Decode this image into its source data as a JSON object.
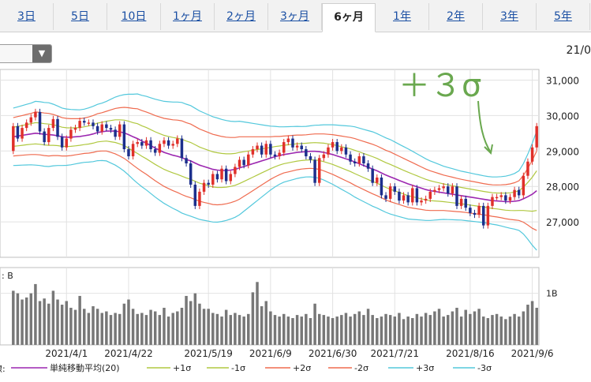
{
  "tabs": [
    {
      "label": "3日",
      "active": false
    },
    {
      "label": "5日",
      "active": false
    },
    {
      "label": "10日",
      "active": false
    },
    {
      "label": "1ヶ月",
      "active": false
    },
    {
      "label": "2ヶ月",
      "active": false
    },
    {
      "label": "3ヶ月",
      "active": false
    },
    {
      "label": "6ヶ月",
      "active": true
    },
    {
      "label": "1年",
      "active": false
    },
    {
      "label": "2年",
      "active": false
    },
    {
      "label": "3年",
      "active": false
    },
    {
      "label": "5年",
      "active": false
    }
  ],
  "header": {
    "date_label": "21/0"
  },
  "colors": {
    "up": "#e0302a",
    "down": "#1c2f8c",
    "sma": "#9c27b0",
    "band1": "#b0c840",
    "band2": "#ef6b4f",
    "band3": "#53c8dc",
    "volume": "#777777",
    "annotation": "#6aa84f"
  },
  "chart_data": {
    "type": "candlestick",
    "price_ticks": [
      "31,000",
      "30,000",
      "29,000",
      "28,000",
      "27,000"
    ],
    "price_tick_values": [
      31000,
      30000,
      29000,
      28000,
      27000
    ],
    "price_range": [
      26000,
      31300
    ],
    "volume_label_left": ": B",
    "volume_tick_label": "1B",
    "volume_tick_value": 1.0,
    "volume_range": [
      0,
      1.5
    ],
    "x_labels": [
      "2021/4/1",
      "2021/4/22",
      "2021/5/19",
      "2021/6/9",
      "2021/6/30",
      "2021/7/21",
      "2021/8/16",
      "2021/9/6"
    ],
    "x_label_indices": [
      12,
      26,
      44,
      58,
      72,
      86,
      103,
      117
    ],
    "annotation": "＋３σ",
    "legend": [
      {
        "label": "単純移動平均(20)",
        "key": "sma"
      },
      {
        "label": "+1σ",
        "key": "band1"
      },
      {
        "label": "-1σ",
        "key": "band1"
      },
      {
        "label": "+2σ",
        "key": "band2"
      },
      {
        "label": "-2σ",
        "key": "band2"
      },
      {
        "label": "+3σ",
        "key": "band3"
      },
      {
        "label": "-3σ",
        "key": "band3"
      }
    ],
    "legend_prefix": "線:",
    "close": [
      29700,
      29350,
      29650,
      29800,
      29950,
      30100,
      29550,
      29250,
      29650,
      29900,
      29400,
      29100,
      29350,
      29600,
      29650,
      29850,
      29800,
      29800,
      29700,
      29550,
      29750,
      29650,
      29600,
      29400,
      29750,
      29050,
      28850,
      29200,
      29250,
      29150,
      29300,
      29050,
      28950,
      29200,
      29300,
      29150,
      29200,
      29350,
      28800,
      28650,
      28050,
      27450,
      27850,
      28100,
      28050,
      28350,
      28200,
      28500,
      28150,
      28350,
      28550,
      28750,
      28600,
      28900,
      29050,
      29150,
      28900,
      29200,
      28900,
      28850,
      28950,
      29250,
      29350,
      29100,
      29150,
      29050,
      28850,
      28750,
      28100,
      28800,
      28900,
      29100,
      29250,
      29000,
      29100,
      28900,
      28700,
      28650,
      28850,
      28650,
      28500,
      28100,
      28250,
      27750,
      27650,
      28000,
      27850,
      27600,
      27750,
      27550,
      27950,
      27550,
      27600,
      27650,
      27850,
      27900,
      27950,
      28000,
      27800,
      28000,
      27450,
      27650,
      27400,
      27250,
      27200,
      27450,
      26900,
      27450,
      27700,
      27700,
      27750,
      27600,
      27700,
      27900,
      27750,
      28300,
      28700,
      29100,
      29700
    ],
    "open": [
      29000,
      29700,
      29350,
      29650,
      29800,
      29950,
      30100,
      29550,
      29250,
      29650,
      29900,
      29400,
      29100,
      29350,
      29600,
      29650,
      29850,
      29800,
      29800,
      29700,
      29550,
      29750,
      29650,
      29600,
      29400,
      29750,
      29050,
      28850,
      29200,
      29250,
      29150,
      29300,
      29050,
      28950,
      29200,
      29300,
      29150,
      29200,
      29350,
      28800,
      28650,
      28050,
      27450,
      27850,
      28100,
      28050,
      28350,
      28200,
      28500,
      28150,
      28350,
      28550,
      28750,
      28600,
      28900,
      29050,
      29150,
      28900,
      29200,
      28900,
      28850,
      28950,
      29250,
      29350,
      29100,
      29150,
      29050,
      28850,
      28750,
      28100,
      28800,
      28900,
      29100,
      29250,
      29000,
      29100,
      28900,
      28700,
      28650,
      28850,
      28650,
      28500,
      28100,
      28250,
      27750,
      27650,
      28000,
      27850,
      27600,
      27750,
      27550,
      27950,
      27550,
      27600,
      27650,
      27850,
      27900,
      27950,
      28000,
      27800,
      28000,
      27450,
      27650,
      27400,
      27250,
      27200,
      27450,
      26900,
      27450,
      27700,
      27700,
      27750,
      27600,
      27700,
      27900,
      27750,
      28300,
      28700,
      29100
    ],
    "volume": [
      1.05,
      1.0,
      0.88,
      0.92,
      1.0,
      1.18,
      0.85,
      0.9,
      0.8,
      1.05,
      0.88,
      0.78,
      0.85,
      0.72,
      0.68,
      0.95,
      0.7,
      0.62,
      0.75,
      0.7,
      0.62,
      0.65,
      0.58,
      0.62,
      0.6,
      0.8,
      0.88,
      0.7,
      0.6,
      0.62,
      0.58,
      0.68,
      0.65,
      0.58,
      0.72,
      0.55,
      0.62,
      0.65,
      0.72,
      0.95,
      0.85,
      1.0,
      0.8,
      0.7,
      0.7,
      0.62,
      0.6,
      0.55,
      0.68,
      0.58,
      0.62,
      0.58,
      0.55,
      0.6,
      1.02,
      1.22,
      0.75,
      0.85,
      0.65,
      0.58,
      0.55,
      0.6,
      0.55,
      0.52,
      0.58,
      0.55,
      0.6,
      0.52,
      0.8,
      0.6,
      0.58,
      0.55,
      0.52,
      0.55,
      0.58,
      0.62,
      0.55,
      0.6,
      0.65,
      0.58,
      0.7,
      0.58,
      0.52,
      0.55,
      0.6,
      0.58,
      0.55,
      0.62,
      0.5,
      0.55,
      0.52,
      0.6,
      0.55,
      0.62,
      0.58,
      0.65,
      0.7,
      0.55,
      0.58,
      0.65,
      0.72,
      0.55,
      0.68,
      0.6,
      0.65,
      0.7,
      0.55,
      0.52,
      0.58,
      0.6,
      0.55,
      0.5,
      0.55,
      0.6,
      0.55,
      0.65,
      0.78,
      0.85,
      0.72
    ],
    "sma": [
      29400,
      29420,
      29440,
      29460,
      29480,
      29500,
      29490,
      29470,
      29460,
      29450,
      29430,
      29400,
      29390,
      29390,
      29400,
      29410,
      29430,
      29450,
      29480,
      29520,
      29540,
      29560,
      29560,
      29560,
      29540,
      29510,
      29460,
      29400,
      29350,
      29280,
      29220,
      29150,
      29080,
      29020,
      28960,
      28920,
      28880,
      28850,
      28810,
      28760,
      28720,
      28660,
      28600,
      28560,
      28520,
      28480,
      28460,
      28450,
      28450,
      28460,
      28480,
      28520,
      28560,
      28600,
      28640,
      28680,
      28720,
      28760,
      28800,
      28840,
      28870,
      28900,
      28920,
      28940,
      28960,
      28970,
      28980,
      28990,
      28990,
      28980,
      28960,
      28930,
      28900,
      28860,
      28820,
      28780,
      28740,
      28690,
      28640,
      28590,
      28540,
      28490,
      28440,
      28380,
      28320,
      28270,
      28220,
      28170,
      28120,
      28070,
      28030,
      27990,
      27950,
      27910,
      27880,
      27860,
      27840,
      27820,
      27800,
      27780,
      27760,
      27740,
      27720,
      27700,
      27680,
      27660,
      27640,
      27620,
      27600,
      27590,
      27580,
      27570,
      27570,
      27580,
      27600,
      27650,
      27710,
      27780,
      27880
    ],
    "sigma": [
      270,
      275,
      280,
      285,
      290,
      300,
      300,
      300,
      300,
      290,
      280,
      270,
      265,
      260,
      255,
      250,
      250,
      255,
      260,
      265,
      270,
      280,
      300,
      320,
      340,
      360,
      380,
      400,
      420,
      430,
      440,
      450,
      460,
      470,
      480,
      490,
      500,
      510,
      520,
      520,
      520,
      515,
      510,
      505,
      500,
      495,
      490,
      480,
      470,
      460,
      450,
      440,
      420,
      400,
      380,
      360,
      340,
      320,
      300,
      285,
      270,
      260,
      255,
      250,
      245,
      240,
      238,
      240,
      245,
      250,
      260,
      270,
      280,
      290,
      300,
      310,
      320,
      330,
      335,
      340,
      345,
      350,
      350,
      350,
      350,
      350,
      345,
      340,
      335,
      330,
      320,
      310,
      300,
      290,
      280,
      270,
      260,
      250,
      245,
      240,
      235,
      230,
      228,
      226,
      224,
      222,
      220,
      220,
      222,
      226,
      232,
      240,
      250,
      262,
      280,
      330,
      400,
      480,
      560
    ]
  }
}
